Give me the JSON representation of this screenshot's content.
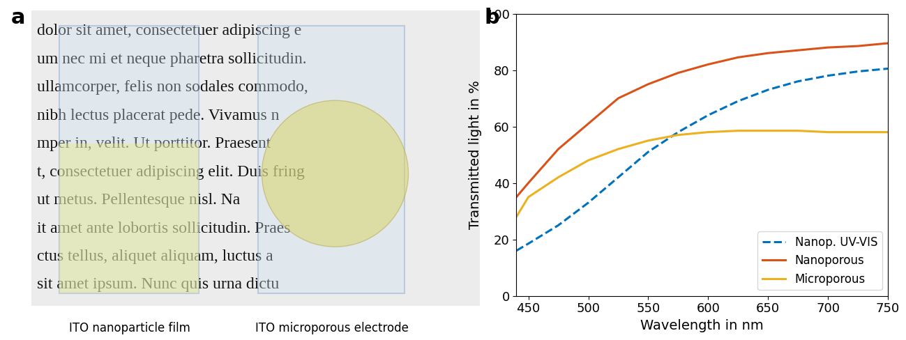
{
  "photo": {
    "panel_label": "a",
    "text_lines": [
      "dolor sit amet, consectetuer adipiscing e",
      "um nec mi et neque pharetra sollicitudin.",
      "ullamcorper, felis non sodales commodo,",
      "nibh lectus placerat pede. Vivamus n",
      "mper in, velit. Ut porttitor. Praesent",
      "t, consectetuer adipiscing elit. Duis fring",
      "ut metus. Pellentesque nisl. Na",
      "it amet ante lobortis sollicitudin. Praes",
      "ctus tellus, aliquet aliquam, luctus a",
      "sit amet ipsum. Nunc quis urna dictu"
    ],
    "captions": [
      "ITO nanoparticle film",
      "ITO microporous electrode"
    ]
  },
  "chart_data": {
    "type": "line",
    "panel_label": "b",
    "x_label": "Wavelength in nm",
    "y_label": "Transmitted light in %",
    "x": [
      440,
      450,
      475,
      500,
      525,
      550,
      575,
      600,
      625,
      650,
      675,
      700,
      725,
      750
    ],
    "series": [
      {
        "name": "Nanop. UV-VIS",
        "color": "#0072bd",
        "line_style": "dashed",
        "values": [
          16,
          18.5,
          25,
          33,
          42,
          51,
          58,
          64,
          69,
          73,
          76,
          78,
          79.5,
          80.5
        ]
      },
      {
        "name": "Nanoporous",
        "color": "#d95319",
        "line_style": "solid",
        "values": [
          35,
          40,
          52,
          61,
          70,
          75,
          79,
          82,
          84.5,
          86,
          87,
          88,
          88.5,
          89.5
        ]
      },
      {
        "name": "Microporous",
        "color": "#edb120",
        "line_style": "solid",
        "values": [
          28,
          35,
          42,
          48,
          52,
          55,
          57,
          58,
          58.5,
          58.5,
          58.5,
          58,
          58,
          58
        ]
      }
    ],
    "xlim": [
      440,
      750
    ],
    "ylim": [
      0,
      100
    ],
    "xticks": [
      450,
      500,
      550,
      600,
      650,
      700,
      750
    ],
    "yticks": [
      0,
      20,
      40,
      60,
      80,
      100
    ],
    "grid": false,
    "legend": "lower right"
  }
}
